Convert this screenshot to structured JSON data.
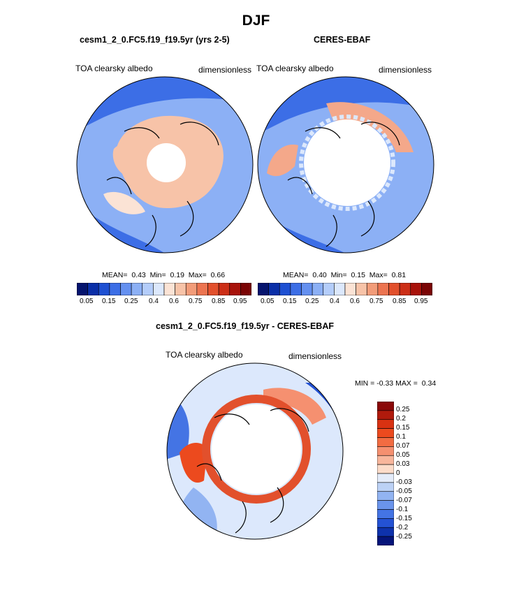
{
  "title": "DJF",
  "panels": [
    {
      "title": "cesm1_2_0.FC5.f19_f19.5yr (yrs 2-5)",
      "left_label": "TOA clearsky albedo",
      "right_label": "dimensionless",
      "stats": {
        "mean_label": "MEAN=",
        "mean": "0.43",
        "min_label": "Min=",
        "min": "0.19",
        "max_label": "Max=",
        "max": "0.66"
      }
    },
    {
      "title": "CERES-EBAF",
      "left_label": "TOA clearsky albedo",
      "right_label": "dimensionless",
      "stats": {
        "mean_label": "MEAN=",
        "mean": "0.40",
        "min_label": "Min=",
        "min": "0.15",
        "max_label": "Max=",
        "max": "0.81"
      }
    },
    {
      "title": "cesm1_2_0.FC5.f19_f19.5yr - CERES-EBAF",
      "left_label": "TOA clearsky albedo",
      "right_label": "dimensionless",
      "stats": {
        "min_label": "MIN =",
        "min": "-0.33",
        "max_label": "MAX =",
        "max": "0.34"
      }
    }
  ],
  "colorbar_horizontal": {
    "ticks": [
      "0.05",
      "0.15",
      "0.25",
      "0.4",
      "0.6",
      "0.75",
      "0.85",
      "0.95"
    ],
    "colors": [
      "#05146e",
      "#0a2fa8",
      "#1e50d2",
      "#3c6ee6",
      "#6490f0",
      "#8cb0f5",
      "#b4cdfa",
      "#dce8fc",
      "#fbe3d5",
      "#f7c3a8",
      "#f29c79",
      "#ec7450",
      "#e2502c",
      "#cc2e16",
      "#a8120a",
      "#7a0404"
    ]
  },
  "colorbar_vertical": {
    "labels": [
      "0.25",
      "0.2",
      "0.15",
      "0.1",
      "0.07",
      "0.05",
      "0.03",
      "0",
      "-0.03",
      "-0.05",
      "-0.07",
      "-0.1",
      "-0.15",
      "-0.2",
      "-0.25"
    ],
    "colors": [
      "#8a0808",
      "#b01a0c",
      "#d83212",
      "#ec4a1e",
      "#f26c42",
      "#f59070",
      "#f8b69c",
      "#fcdcca",
      "#e4ecfa",
      "#bcd2f6",
      "#92b4f2",
      "#6a94ec",
      "#4474e4",
      "#2452d4",
      "#0e32ac",
      "#05147a"
    ]
  },
  "colors": {
    "land_model": "#f7c3a8",
    "ocean_model": "#8cb0f5",
    "ocean_model_deep": "#3c6ee6",
    "land_obs": "#f4a88a",
    "ring_diff": "#e2502c",
    "diff_bg": "#dce8fc",
    "pole": "#ffffff"
  }
}
